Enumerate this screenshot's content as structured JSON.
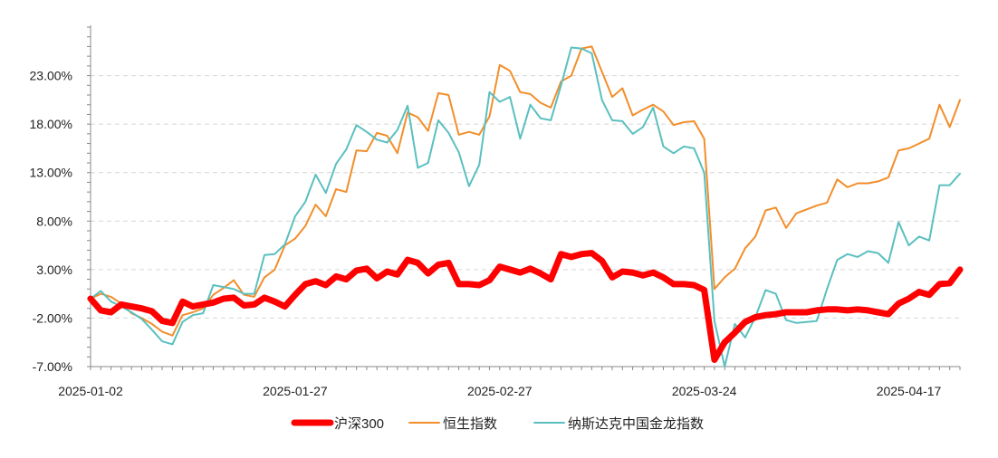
{
  "chart_data": {
    "type": "line",
    "title": "",
    "xlabel": "",
    "ylabel": "",
    "ylim": [
      -7,
      28
    ],
    "yticks": [
      -7,
      -2,
      3,
      8,
      13,
      18,
      23
    ],
    "ytick_labels": [
      "-7.00%",
      "-2.00%",
      "3.00%",
      "8.00%",
      "13.00%",
      "18.00%",
      "23.00%"
    ],
    "xtick_labels": [
      {
        "index": 0,
        "label": "2025-01-02"
      },
      {
        "index": 20,
        "label": "2025-01-27"
      },
      {
        "index": 40,
        "label": "2025-02-27"
      },
      {
        "index": 60,
        "label": "2025-03-24"
      },
      {
        "index": 80,
        "label": "2025-04-17"
      }
    ],
    "grid": true,
    "legend_position": "bottom",
    "series": [
      {
        "name": "沪深300",
        "color": "#ff0000",
        "values": [
          0,
          -1.2,
          -1.4,
          -0.6,
          -0.8,
          -1.0,
          -1.3,
          -2.3,
          -2.5,
          -0.3,
          -0.8,
          -0.6,
          -0.4,
          0,
          0.1,
          -0.7,
          -0.6,
          0.1,
          -0.3,
          -0.8,
          0.4,
          1.5,
          1.8,
          1.4,
          2.3,
          2.0,
          2.9,
          3.1,
          2.1,
          2.8,
          2.5,
          4.0,
          3.7,
          2.6,
          3.5,
          3.7,
          1.5,
          1.5,
          1.4,
          1.9,
          3.3,
          3.0,
          2.7,
          3.1,
          2.6,
          2.0,
          4.6,
          4.3,
          4.6,
          4.7,
          3.9,
          2.2,
          2.8,
          2.7,
          2.4,
          2.7,
          2.2,
          1.5,
          1.5,
          1.4,
          0.9,
          -6.3,
          -4.5,
          -3.5,
          -2.4,
          -1.9,
          -1.7,
          -1.6,
          -1.4,
          -1.4,
          -1.4,
          -1.2,
          -1.1,
          -1.1,
          -1.2,
          -1.1,
          -1.2,
          -1.4,
          -1.6,
          -0.5,
          0,
          0.7,
          0.4,
          1.5,
          1.6,
          3.0
        ]
      },
      {
        "name": "恒生指数",
        "color": "#f28e2b",
        "values": [
          0,
          0.5,
          0.2,
          -0.5,
          -1.5,
          -2.0,
          -2.6,
          -3.4,
          -3.8,
          -1.7,
          -1.4,
          -1.0,
          0.4,
          1.1,
          1.9,
          0.4,
          0.2,
          2.2,
          3.0,
          5.5,
          6.2,
          7.5,
          9.7,
          8.5,
          11.3,
          11.0,
          15.3,
          15.2,
          17.1,
          16.8,
          15.0,
          19.2,
          18.7,
          17.3,
          21.2,
          21.0,
          16.9,
          17.2,
          16.9,
          18.8,
          24.1,
          23.5,
          21.3,
          21.1,
          20.2,
          19.7,
          22.4,
          23.0,
          25.8,
          26.0,
          23.4,
          20.8,
          21.7,
          18.9,
          19.5,
          20.0,
          19.3,
          17.9,
          18.2,
          18.3,
          16.5,
          1.0,
          2.2,
          3.1,
          5.2,
          6.4,
          9.1,
          9.4,
          7.3,
          8.8,
          9.2,
          9.6,
          9.9,
          12.3,
          11.5,
          11.9,
          11.9,
          12.1,
          12.5,
          15.3,
          15.5,
          16.0,
          16.5,
          20.0,
          17.7,
          20.5
        ]
      },
      {
        "name": "纳斯达克中国金龙指数",
        "color": "#5bbfbf",
        "values": [
          0,
          0.8,
          -0.3,
          -0.8,
          -1.4,
          -2.1,
          -3.2,
          -4.4,
          -4.7,
          -2.4,
          -1.7,
          -1.5,
          1.4,
          1.2,
          1.0,
          0.5,
          0.5,
          4.5,
          4.6,
          5.6,
          8.5,
          10.0,
          12.8,
          10.9,
          13.9,
          15.4,
          17.9,
          17.2,
          16.4,
          16.1,
          17.4,
          19.9,
          13.5,
          14.0,
          18.4,
          17.1,
          15.1,
          11.6,
          13.8,
          21.3,
          20.3,
          20.8,
          16.5,
          20.0,
          18.6,
          18.4,
          22.0,
          25.9,
          25.8,
          25.3,
          20.5,
          18.4,
          18.3,
          17.0,
          17.7,
          19.7,
          15.7,
          15.0,
          15.7,
          15.5,
          13.0,
          -2.3,
          -7.0,
          -2.6,
          -4.0,
          -1.9,
          0.9,
          0.5,
          -2.2,
          -2.5,
          -2.4,
          -2.3,
          1.0,
          4.0,
          4.6,
          4.3,
          4.9,
          4.7,
          3.7,
          7.9,
          5.5,
          6.4,
          6.0,
          11.7,
          11.7,
          12.9
        ]
      }
    ]
  }
}
